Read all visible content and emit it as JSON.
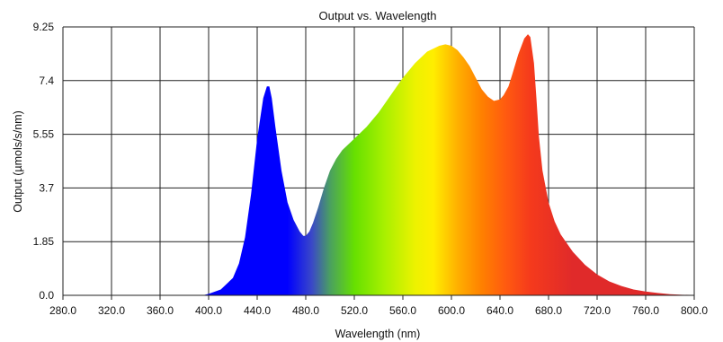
{
  "chart_data": {
    "type": "area",
    "title": "Output vs. Wavelength",
    "xlabel": "Wavelength (nm)",
    "ylabel": "Output (µmols/s/nm)",
    "xlim": [
      280,
      800
    ],
    "ylim": [
      0,
      9.25
    ],
    "x_ticks": [
      280,
      320,
      360,
      400,
      440,
      480,
      520,
      560,
      600,
      640,
      680,
      720,
      760,
      800
    ],
    "x_tick_labels": [
      "280.0",
      "320.0",
      "360.0",
      "400.0",
      "440.0",
      "480.0",
      "520.0",
      "560.0",
      "600.0",
      "640.0",
      "680.0",
      "720.0",
      "760.0",
      "800.0"
    ],
    "y_ticks": [
      0,
      1.85,
      3.7,
      5.55,
      7.4,
      9.25
    ],
    "y_tick_labels": [
      "0.0",
      "1.85",
      "3.7",
      "5.55",
      "7.4",
      "9.25"
    ],
    "grid": true,
    "series": [
      {
        "x": [
          395,
          400,
          410,
          420,
          425,
          430,
          435,
          440,
          445,
          448,
          450,
          452,
          455,
          460,
          465,
          470,
          475,
          478,
          480,
          483,
          486,
          490,
          495,
          500,
          505,
          510,
          520,
          530,
          540,
          550,
          560,
          570,
          580,
          590,
          595,
          600,
          605,
          610,
          615,
          620,
          625,
          630,
          635,
          640,
          643,
          647,
          650,
          655,
          660,
          663,
          665,
          668,
          670,
          672,
          675,
          680,
          685,
          690,
          700,
          710,
          720,
          730,
          740,
          750,
          760,
          770,
          780,
          790,
          800
        ],
        "y": [
          0,
          0.05,
          0.2,
          0.6,
          1.1,
          2.0,
          3.5,
          5.4,
          6.8,
          7.2,
          7.2,
          6.8,
          5.8,
          4.3,
          3.2,
          2.6,
          2.2,
          2.05,
          2.05,
          2.2,
          2.5,
          3.0,
          3.7,
          4.3,
          4.7,
          5.0,
          5.4,
          5.8,
          6.3,
          6.9,
          7.5,
          8.0,
          8.4,
          8.6,
          8.65,
          8.6,
          8.45,
          8.2,
          7.9,
          7.5,
          7.1,
          6.85,
          6.7,
          6.75,
          6.9,
          7.2,
          7.6,
          8.3,
          8.85,
          9.0,
          8.9,
          8.0,
          6.8,
          5.5,
          4.3,
          3.2,
          2.55,
          2.1,
          1.5,
          1.05,
          0.72,
          0.48,
          0.32,
          0.2,
          0.13,
          0.08,
          0.04,
          0.02,
          0.01
        ]
      }
    ]
  }
}
